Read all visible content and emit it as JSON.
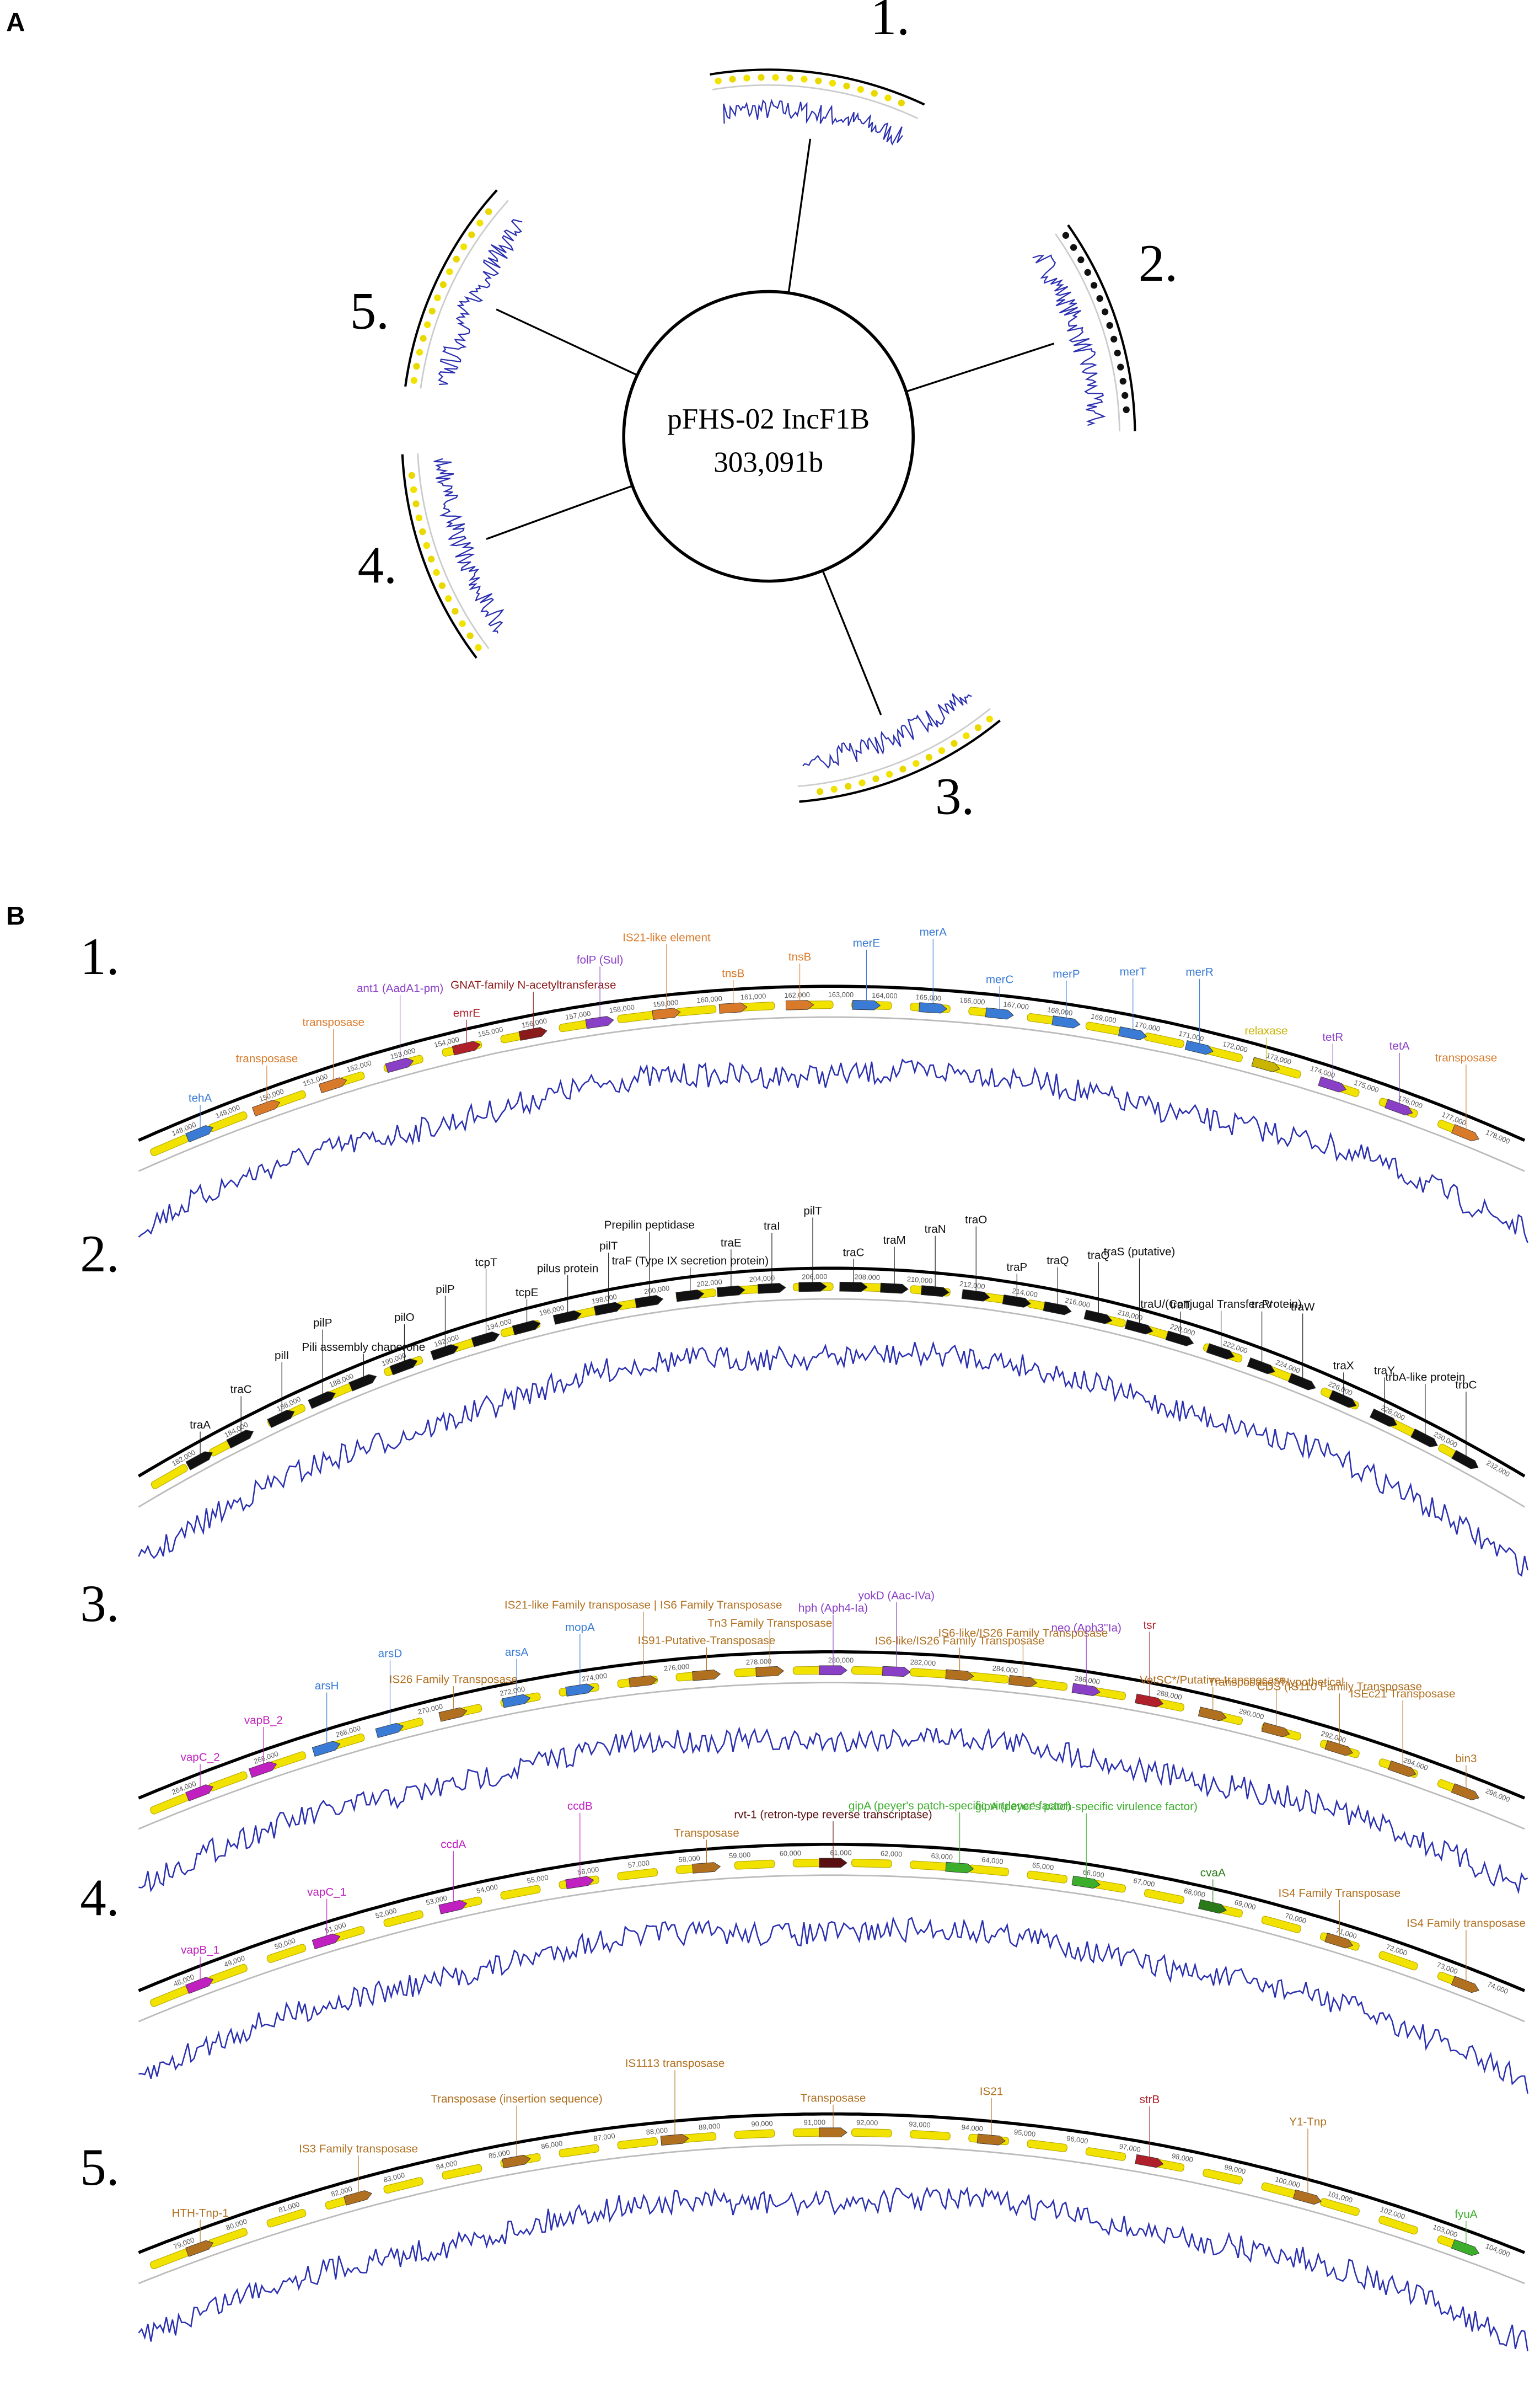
{
  "panel_a": {
    "label": "A",
    "center_title": "pFHS-02 IncF1B",
    "center_subtitle": "303,091b",
    "segments": [
      "1.",
      "2.",
      "3.",
      "4.",
      "5."
    ]
  },
  "panel_b": {
    "label": "B",
    "tracks": [
      {
        "number": "1.",
        "ticks": [
          "148,000",
          "149,000",
          "150,000",
          "151,000",
          "152,000",
          "153,000",
          "154,000",
          "155,000",
          "156,000",
          "157,000",
          "158,000",
          "159,000",
          "160,000",
          "161,000",
          "162,000",
          "163,000",
          "164,000",
          "165,000",
          "166,000",
          "167,000",
          "168,000",
          "169,000",
          "170,000",
          "171,000",
          "172,000",
          "173,000",
          "174,000",
          "175,000",
          "176,000",
          "177,000",
          "178,000"
        ],
        "genes": [
          {
            "label": "tehA",
            "color": "#3a7bd5"
          },
          {
            "label": "transposase",
            "color": "#d97a2b"
          },
          {
            "label": "transposase",
            "color": "#d97a2b"
          },
          {
            "label": "ant1 (AadA1-pm)",
            "color": "#8a3fc7"
          },
          {
            "label": "emrE",
            "color": "#b0202a"
          },
          {
            "label": "GNAT-family N-acetyltransferase",
            "color": "#8b1a1a"
          },
          {
            "label": "folP (Sul)",
            "color": "#8a3fc7"
          },
          {
            "label": "IS21-like element",
            "color": "#d97a2b"
          },
          {
            "label": "tnsB",
            "color": "#d97a2b"
          },
          {
            "label": "tnsB",
            "color": "#d97a2b"
          },
          {
            "label": "merE",
            "color": "#3a7bd5"
          },
          {
            "label": "merA",
            "color": "#3a7bd5"
          },
          {
            "label": "merC",
            "color": "#3a7bd5"
          },
          {
            "label": "merP",
            "color": "#3a7bd5"
          },
          {
            "label": "merT",
            "color": "#3a7bd5"
          },
          {
            "label": "merR",
            "color": "#3a7bd5"
          },
          {
            "label": "relaxase",
            "color": "#c9b400"
          },
          {
            "label": "tetR",
            "color": "#8a3fc7"
          },
          {
            "label": "tetA",
            "color": "#8a3fc7"
          },
          {
            "label": "transposase",
            "color": "#d97a2b"
          }
        ]
      },
      {
        "number": "2.",
        "ticks": [
          "182,000",
          "184,000",
          "186,000",
          "188,000",
          "190,000",
          "192,000",
          "194,000",
          "196,000",
          "198,000",
          "200,000",
          "202,000",
          "204,000",
          "206,000",
          "208,000",
          "210,000",
          "212,000",
          "214,000",
          "216,000",
          "218,000",
          "220,000",
          "222,000",
          "224,000",
          "226,000",
          "228,000",
          "230,000",
          "232,000"
        ],
        "genes": [
          {
            "label": "traA",
            "color": "#111111"
          },
          {
            "label": "traC",
            "color": "#111111"
          },
          {
            "label": "pilI",
            "color": "#111111"
          },
          {
            "label": "pilP",
            "color": "#111111"
          },
          {
            "label": "Pili assembly chaperone",
            "color": "#111111"
          },
          {
            "label": "pilO",
            "color": "#111111"
          },
          {
            "label": "pilP",
            "color": "#111111"
          },
          {
            "label": "tcpT",
            "color": "#111111"
          },
          {
            "label": "tcpE",
            "color": "#111111"
          },
          {
            "label": "pilus protein",
            "color": "#111111"
          },
          {
            "label": "pilT",
            "color": "#111111"
          },
          {
            "label": "Prepilin peptidase",
            "color": "#111111"
          },
          {
            "label": "traF (Type IX secretion protein)",
            "color": "#111111"
          },
          {
            "label": "traE",
            "color": "#111111"
          },
          {
            "label": "traI",
            "color": "#111111"
          },
          {
            "label": "pilT",
            "color": "#111111"
          },
          {
            "label": "traC",
            "color": "#111111"
          },
          {
            "label": "traM",
            "color": "#111111"
          },
          {
            "label": "traN",
            "color": "#111111"
          },
          {
            "label": "traO",
            "color": "#111111"
          },
          {
            "label": "traP",
            "color": "#111111"
          },
          {
            "label": "traQ",
            "color": "#111111"
          },
          {
            "label": "traQ",
            "color": "#111111"
          },
          {
            "label": "traS (putative)",
            "color": "#111111"
          },
          {
            "label": "traT",
            "color": "#111111"
          },
          {
            "label": "traU/(Conjugal Transfer Protein)",
            "color": "#111111"
          },
          {
            "label": "traV",
            "color": "#111111"
          },
          {
            "label": "traW",
            "color": "#111111"
          },
          {
            "label": "traX",
            "color": "#111111"
          },
          {
            "label": "traY",
            "color": "#111111"
          },
          {
            "label": "trbA-like protein",
            "color": "#111111"
          },
          {
            "label": "trbC",
            "color": "#111111"
          }
        ]
      },
      {
        "number": "3.",
        "ticks": [
          "264,000",
          "266,000",
          "268,000",
          "270,000",
          "272,000",
          "274,000",
          "276,000",
          "278,000",
          "280,000",
          "282,000",
          "284,000",
          "286,000",
          "288,000",
          "290,000",
          "292,000",
          "294,000",
          "296,000"
        ],
        "genes": [
          {
            "label": "vapC_2",
            "color": "#c020c0"
          },
          {
            "label": "vapB_2",
            "color": "#c020c0"
          },
          {
            "label": "arsH",
            "color": "#3a7bd5"
          },
          {
            "label": "arsD",
            "color": "#3a7bd5"
          },
          {
            "label": "IS26 Family Transposase",
            "color": "#b07020"
          },
          {
            "label": "arsA",
            "color": "#3a7bd5"
          },
          {
            "label": "mopA",
            "color": "#3a7bd5"
          },
          {
            "label": "IS21-like Family transposase | IS6 Family Transposase",
            "color": "#b07020"
          },
          {
            "label": "IS91-Putative-Transposase",
            "color": "#b07020"
          },
          {
            "label": "Tn3 Family Transposase",
            "color": "#b07020"
          },
          {
            "label": "hph (Aph4-Ia)",
            "color": "#8a3fc7"
          },
          {
            "label": "yokD (Aac-IVa)",
            "color": "#8a3fc7"
          },
          {
            "label": "IS6-like/IS26 Family Transposase",
            "color": "#b07020"
          },
          {
            "label": "IS6-like/IS26 Family Transposase",
            "color": "#b07020"
          },
          {
            "label": "neo (Aph3''Ia)",
            "color": "#8a3fc7"
          },
          {
            "label": "tsr",
            "color": "#b0202a"
          },
          {
            "label": "VetSC*/Putative transposase",
            "color": "#b07020"
          },
          {
            "label": "Transposase*/Hypothetical",
            "color": "#b07020"
          },
          {
            "label": "CDS (IS110 Family Transposase",
            "color": "#b07020"
          },
          {
            "label": "ISEc21 Transposase",
            "color": "#b07020"
          },
          {
            "label": "bin3",
            "color": "#b07020"
          }
        ]
      },
      {
        "number": "4.",
        "ticks": [
          "48,000",
          "49,000",
          "50,000",
          "51,000",
          "52,000",
          "53,000",
          "54,000",
          "55,000",
          "56,000",
          "57,000",
          "58,000",
          "59,000",
          "60,000",
          "61,000",
          "62,000",
          "63,000",
          "64,000",
          "65,000",
          "66,000",
          "67,000",
          "68,000",
          "69,000",
          "70,000",
          "71,000",
          "72,000",
          "73,000",
          "74,000"
        ],
        "genes": [
          {
            "label": "vapB_1",
            "color": "#c020c0"
          },
          {
            "label": "vapC_1",
            "color": "#c020c0"
          },
          {
            "label": "ccdA",
            "color": "#c020c0"
          },
          {
            "label": "ccdB",
            "color": "#c020c0"
          },
          {
            "label": "Transposase",
            "color": "#b07020"
          },
          {
            "label": "rvt-1 (retron-type reverse transcriptase)",
            "color": "#5a1010"
          },
          {
            "label": "gipA (peyer's patch-specific virulence factor)",
            "color": "#3cae2c"
          },
          {
            "label": "gipA (peyer's patch-specific virulence factor)",
            "color": "#3cae2c"
          },
          {
            "label": "cvaA",
            "color": "#2a7a1a"
          },
          {
            "label": "IS4 Family Transposase",
            "color": "#b07020"
          },
          {
            "label": "IS4 Family transposase",
            "color": "#b07020"
          }
        ]
      },
      {
        "number": "5.",
        "ticks": [
          "79,000",
          "80,000",
          "81,000",
          "82,000",
          "83,000",
          "84,000",
          "85,000",
          "86,000",
          "87,000",
          "88,000",
          "89,000",
          "90,000",
          "91,000",
          "92,000",
          "93,000",
          "94,000",
          "95,000",
          "96,000",
          "97,000",
          "98,000",
          "99,000",
          "100,000",
          "101,000",
          "102,000",
          "103,000",
          "104,000"
        ],
        "genes": [
          {
            "label": "HTH-Tnp-1",
            "color": "#b07020"
          },
          {
            "label": "IS3 Family transposase",
            "color": "#b07020"
          },
          {
            "label": "Transposase (insertion sequence)",
            "color": "#b07020"
          },
          {
            "label": "IS1113 transposase",
            "color": "#b07020"
          },
          {
            "label": "Transposase",
            "color": "#b07020"
          },
          {
            "label": "IS21",
            "color": "#b07020"
          },
          {
            "label": "strB",
            "color": "#b0202a"
          },
          {
            "label": "Y1-Tnp",
            "color": "#b07020"
          },
          {
            "label": "fyuA",
            "color": "#3cae2c"
          }
        ]
      }
    ]
  }
}
